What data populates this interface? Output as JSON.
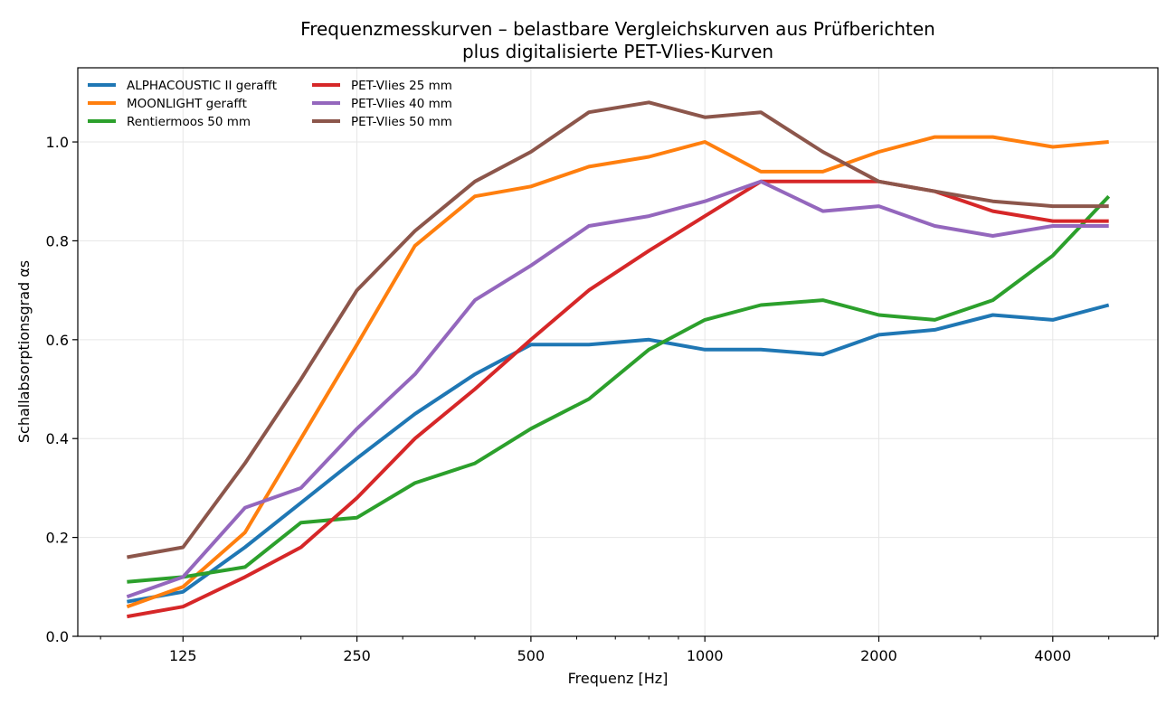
{
  "chart_data": {
    "type": "line",
    "title": [
      "Frequenzmesskurven – belastbare Vergleichskurven aus Prüfberichten",
      "plus digitalisierte PET-Vlies-Kurven"
    ],
    "xlabel": "Frequenz [Hz]",
    "ylabel": "Schallabsorptionsgrad αs",
    "xscale": "log",
    "xlim": [
      82.2,
      6081
    ],
    "ylim": [
      0,
      1.15
    ],
    "grid": true,
    "legend_position": "top-left",
    "legend_columns": 2,
    "x_major_ticks": [
      125,
      250,
      500,
      1000,
      2000,
      4000
    ],
    "x_tick_labels": [
      "125",
      "250",
      "500",
      "1000",
      "2000",
      "4000"
    ],
    "x_minor_ticks": [
      90,
      200,
      300,
      400,
      600,
      700,
      800,
      900,
      3000,
      5000,
      6000
    ],
    "y_ticks": [
      0.0,
      0.2,
      0.4,
      0.6,
      0.8,
      1.0
    ],
    "y_tick_labels": [
      "0.0",
      "0.2",
      "0.4",
      "0.6",
      "0.8",
      "1.0"
    ],
    "x": [
      100,
      125,
      160,
      200,
      250,
      315,
      400,
      500,
      630,
      800,
      1000,
      1250,
      1600,
      2000,
      2500,
      3150,
      4000,
      5000
    ],
    "series": [
      {
        "name": "ALPHACOUSTIC II gerafft",
        "color": "#1f77b4",
        "values": [
          0.07,
          0.09,
          0.18,
          0.27,
          0.36,
          0.45,
          0.53,
          0.59,
          0.59,
          0.6,
          0.58,
          0.58,
          0.57,
          0.61,
          0.62,
          0.65,
          0.64,
          0.67
        ]
      },
      {
        "name": "MOONLIGHT gerafft",
        "color": "#ff7f0e",
        "values": [
          0.06,
          0.1,
          0.21,
          0.4,
          0.59,
          0.79,
          0.89,
          0.91,
          0.95,
          0.97,
          1.0,
          0.94,
          0.94,
          0.98,
          1.01,
          1.01,
          0.99,
          1.0
        ]
      },
      {
        "name": "Rentiermoos 50 mm",
        "color": "#2ca02c",
        "values": [
          0.11,
          0.12,
          0.14,
          0.23,
          0.24,
          0.31,
          0.35,
          0.42,
          0.48,
          0.58,
          0.64,
          0.67,
          0.68,
          0.65,
          0.64,
          0.68,
          0.77,
          0.89
        ]
      },
      {
        "name": "PET-Vlies 25 mm",
        "color": "#d62728",
        "values": [
          0.04,
          0.06,
          0.12,
          0.18,
          0.28,
          0.4,
          0.5,
          0.6,
          0.7,
          0.78,
          0.85,
          0.92,
          0.92,
          0.92,
          0.9,
          0.86,
          0.84,
          0.84
        ]
      },
      {
        "name": "PET-Vlies 40 mm",
        "color": "#9467bd",
        "values": [
          0.08,
          0.12,
          0.26,
          0.3,
          0.42,
          0.53,
          0.68,
          0.75,
          0.83,
          0.85,
          0.88,
          0.92,
          0.86,
          0.87,
          0.83,
          0.81,
          0.83,
          0.83
        ]
      },
      {
        "name": "PET-Vlies 50 mm",
        "color": "#8c564b",
        "values": [
          0.16,
          0.18,
          0.35,
          0.52,
          0.7,
          0.82,
          0.92,
          0.98,
          1.06,
          1.08,
          1.05,
          1.06,
          0.98,
          0.92,
          0.9,
          0.88,
          0.87,
          0.87
        ]
      }
    ]
  }
}
